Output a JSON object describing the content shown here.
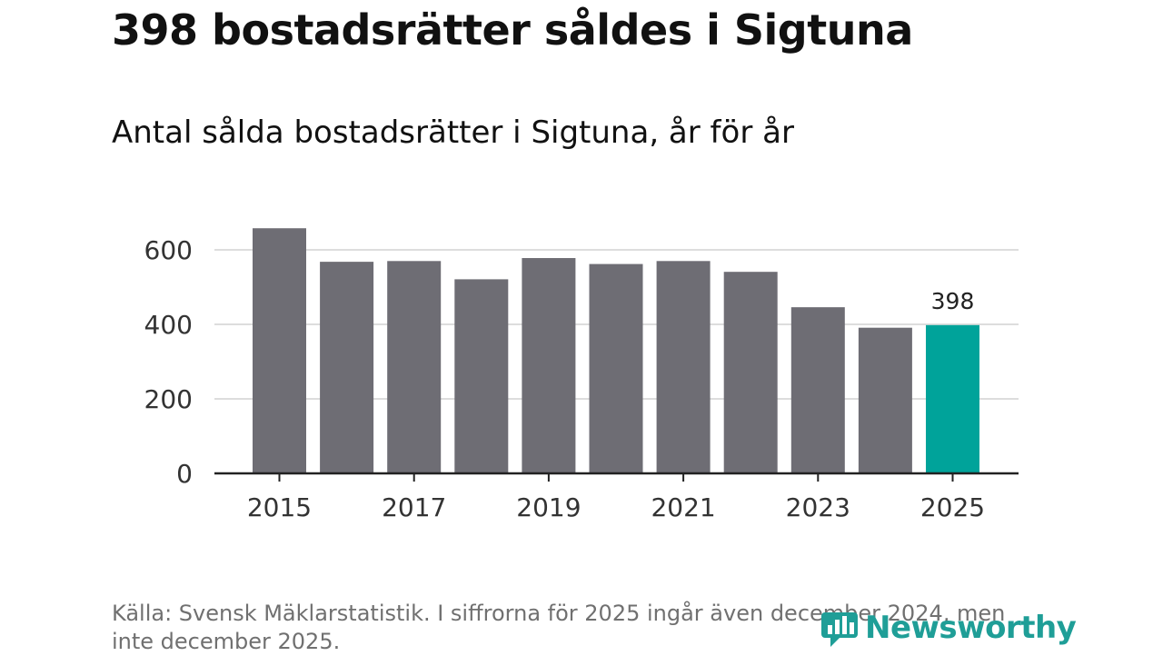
{
  "header": {
    "title": "398 bostadsrätter såldes i Sigtuna",
    "subtitle": "Antal sålda bostadsrätter i Sigtuna, år för år"
  },
  "footer": {
    "source_text": "Källa: Svensk Mäklarstatistik. I siffrorna för 2025 ingår även december 2024, men inte december 2025.",
    "logo_text": "Newsworthy"
  },
  "colors": {
    "bar": "#6e6d74",
    "highlight": "#00a39a",
    "grid": "#dddddd",
    "axis": "#222222",
    "brand": "#1f9e97"
  },
  "chart_data": {
    "type": "bar",
    "title": "Antal sålda bostadsrätter i Sigtuna, år för år",
    "categories": [
      "2015",
      "2016",
      "2017",
      "2018",
      "2019",
      "2020",
      "2021",
      "2022",
      "2023",
      "2024",
      "2025"
    ],
    "values": [
      658,
      568,
      570,
      521,
      578,
      562,
      570,
      541,
      446,
      391,
      398
    ],
    "highlight_category": "2025",
    "highlight_label": "398",
    "x_tick_labels": [
      "2015",
      "2017",
      "2019",
      "2021",
      "2023",
      "2025"
    ],
    "y_ticks": [
      0,
      200,
      400,
      600
    ],
    "ylim": [
      0,
      700
    ],
    "grid": true
  }
}
